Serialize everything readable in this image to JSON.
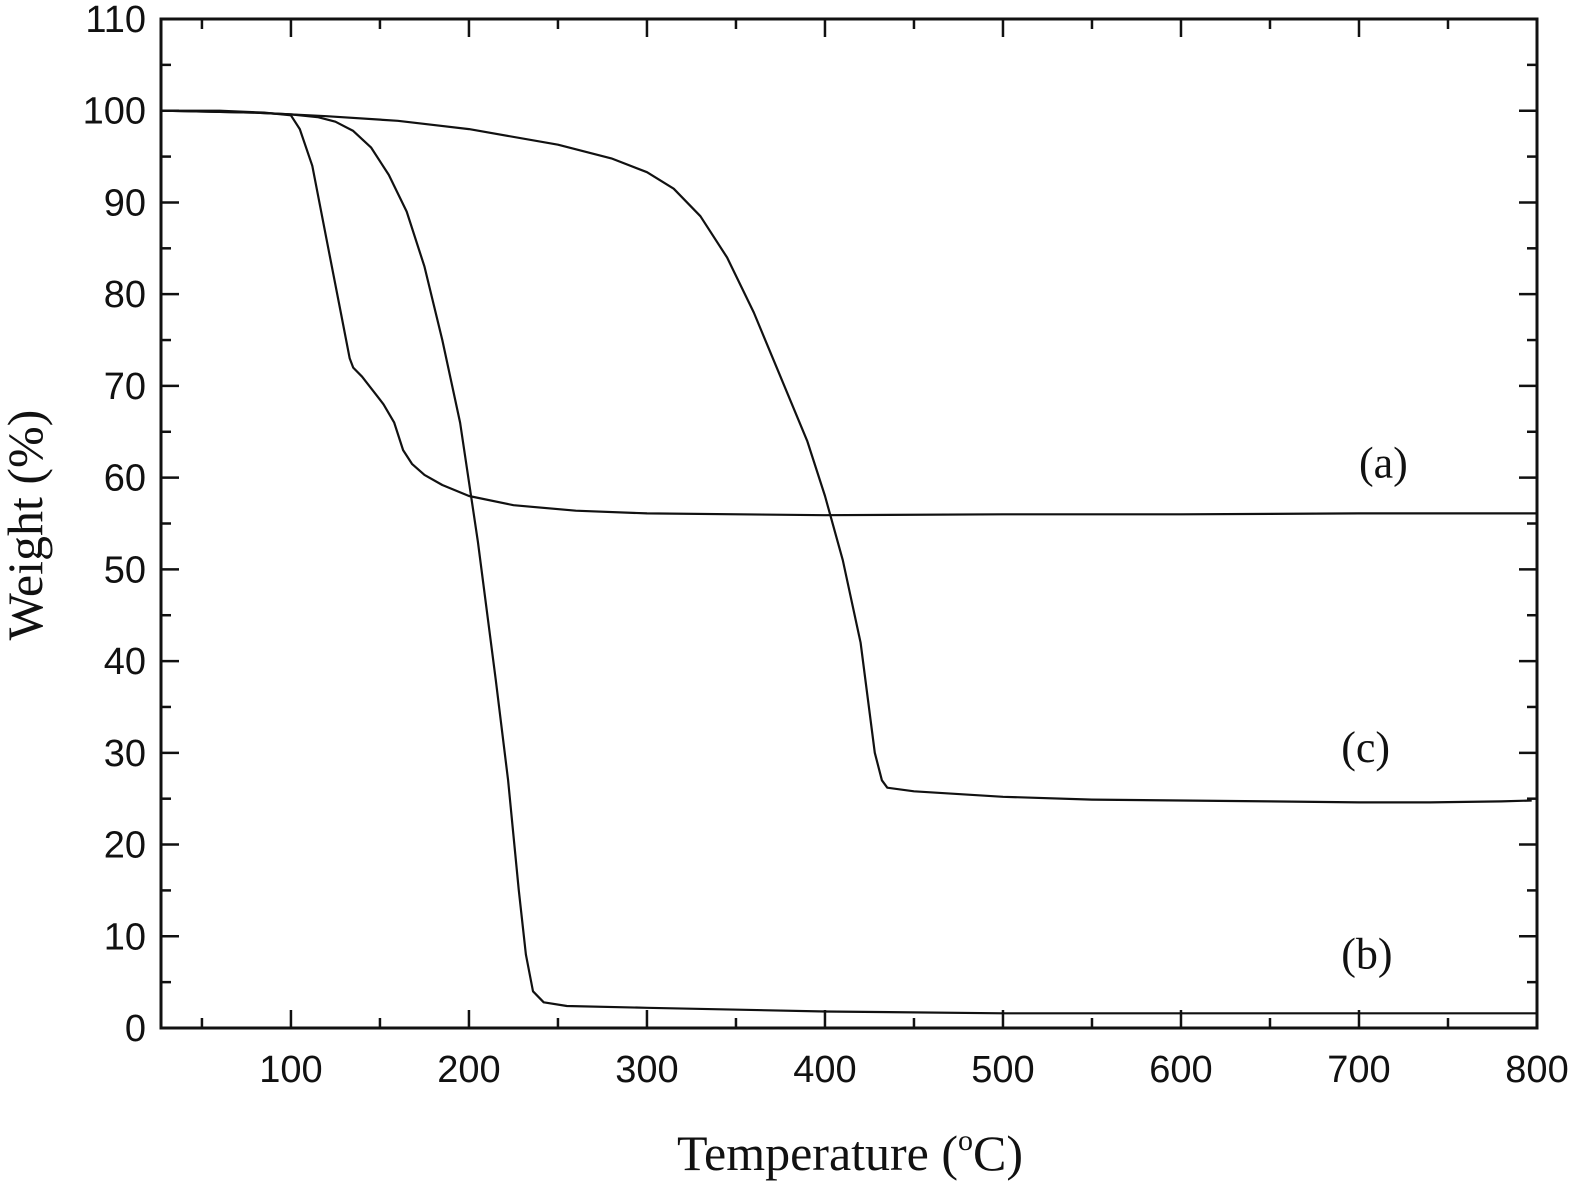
{
  "chart_data": {
    "type": "line",
    "xlabel": "Temperature (",
    "xlabel_sup": "o",
    "xlabel_end": "C)",
    "ylabel": "Weight (%)",
    "xlim": [
      27,
      800
    ],
    "ylim": [
      0,
      110
    ],
    "x_major_ticks": [
      100,
      200,
      300,
      400,
      500,
      600,
      700,
      800
    ],
    "x_minor_ticks": [
      50,
      150,
      250,
      350,
      450,
      550,
      650,
      750
    ],
    "y_major_ticks": [
      0,
      10,
      20,
      30,
      40,
      50,
      60,
      70,
      80,
      90,
      100,
      110
    ],
    "y_minor_ticks": [
      5,
      15,
      25,
      35,
      45,
      55,
      65,
      75,
      85,
      95,
      105
    ],
    "grid": false,
    "legend": "none",
    "series": [
      {
        "name": "(a)",
        "label_at": [
          700,
          60
        ],
        "points": [
          [
            27,
            100
          ],
          [
            60,
            100
          ],
          [
            85,
            99.8
          ],
          [
            100,
            99.5
          ],
          [
            105,
            98
          ],
          [
            112,
            94
          ],
          [
            120,
            86
          ],
          [
            128,
            78
          ],
          [
            133,
            73
          ],
          [
            135,
            72
          ],
          [
            140,
            71
          ],
          [
            148,
            69
          ],
          [
            152,
            68
          ],
          [
            158,
            66
          ],
          [
            163,
            63
          ],
          [
            168,
            61.5
          ],
          [
            175,
            60.3
          ],
          [
            185,
            59.2
          ],
          [
            200,
            58
          ],
          [
            225,
            57
          ],
          [
            260,
            56.4
          ],
          [
            300,
            56.1
          ],
          [
            400,
            55.9
          ],
          [
            500,
            56
          ],
          [
            600,
            56
          ],
          [
            700,
            56.1
          ],
          [
            800,
            56.1
          ]
        ]
      },
      {
        "name": "(b)",
        "label_at": [
          690,
          6.5
        ],
        "points": [
          [
            27,
            100
          ],
          [
            80,
            99.8
          ],
          [
            100,
            99.6
          ],
          [
            115,
            99.3
          ],
          [
            125,
            98.8
          ],
          [
            135,
            97.8
          ],
          [
            145,
            96
          ],
          [
            155,
            93
          ],
          [
            165,
            89
          ],
          [
            175,
            83
          ],
          [
            185,
            75
          ],
          [
            195,
            66
          ],
          [
            205,
            53
          ],
          [
            215,
            38
          ],
          [
            222,
            27
          ],
          [
            228,
            15
          ],
          [
            232,
            8
          ],
          [
            236,
            4
          ],
          [
            242,
            2.8
          ],
          [
            255,
            2.4
          ],
          [
            300,
            2.2
          ],
          [
            400,
            1.8
          ],
          [
            500,
            1.6
          ],
          [
            600,
            1.6
          ],
          [
            700,
            1.6
          ],
          [
            800,
            1.6
          ]
        ]
      },
      {
        "name": "(c)",
        "label_at": [
          690,
          29
        ],
        "points": [
          [
            27,
            100
          ],
          [
            80,
            99.8
          ],
          [
            120,
            99.4
          ],
          [
            160,
            98.9
          ],
          [
            200,
            98
          ],
          [
            250,
            96.3
          ],
          [
            280,
            94.8
          ],
          [
            300,
            93.3
          ],
          [
            315,
            91.5
          ],
          [
            330,
            88.5
          ],
          [
            345,
            84
          ],
          [
            360,
            78
          ],
          [
            375,
            71
          ],
          [
            390,
            64
          ],
          [
            400,
            58
          ],
          [
            410,
            51
          ],
          [
            420,
            42
          ],
          [
            428,
            30
          ],
          [
            432,
            27
          ],
          [
            435,
            26.2
          ],
          [
            450,
            25.8
          ],
          [
            500,
            25.2
          ],
          [
            550,
            24.9
          ],
          [
            600,
            24.8
          ],
          [
            650,
            24.7
          ],
          [
            700,
            24.6
          ],
          [
            740,
            24.6
          ],
          [
            780,
            24.7
          ],
          [
            797,
            24.8
          ]
        ]
      }
    ]
  }
}
